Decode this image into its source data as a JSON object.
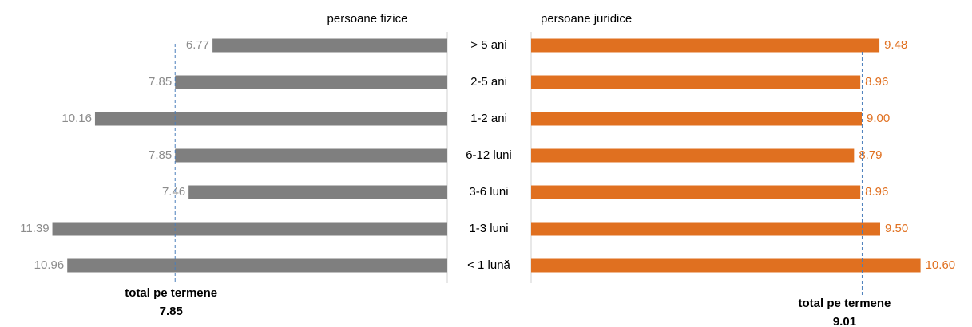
{
  "chart_data": {
    "type": "butterfly-bar",
    "categories": [
      "> 5 ani",
      "2-5 ani",
      "1-2 ani",
      "6-12 luni",
      "3-6 luni",
      "1-3 luni",
      "< 1 lună"
    ],
    "series": [
      {
        "name": "persoane fizice",
        "color": "#7f7f7f",
        "label_color": "#8c8c8c",
        "xlim": [
          0,
          12.9
        ],
        "values": [
          6.77,
          7.85,
          10.16,
          7.85,
          7.46,
          11.39,
          10.96
        ],
        "value_labels": [
          "6.77",
          "7.85",
          "10.16",
          "7.85",
          "7.46",
          "11.39",
          "10.96"
        ]
      },
      {
        "name": "persoane juridice",
        "color": "#e07020",
        "label_color": "#e07020",
        "xlim": [
          0,
          12
        ],
        "values": [
          9.48,
          8.96,
          9.0,
          8.79,
          8.96,
          9.5,
          10.6
        ],
        "value_labels": [
          "9.48",
          "8.96",
          "9.00",
          "8.79",
          "8.96",
          "9.50",
          "10.60"
        ]
      }
    ],
    "reference_lines": [
      {
        "label": "total pe termene",
        "value": 7.85,
        "color": "#4a7ebb"
      },
      {
        "label": "total pe termene",
        "value": 9.01,
        "color": "#4a7ebb"
      }
    ]
  }
}
